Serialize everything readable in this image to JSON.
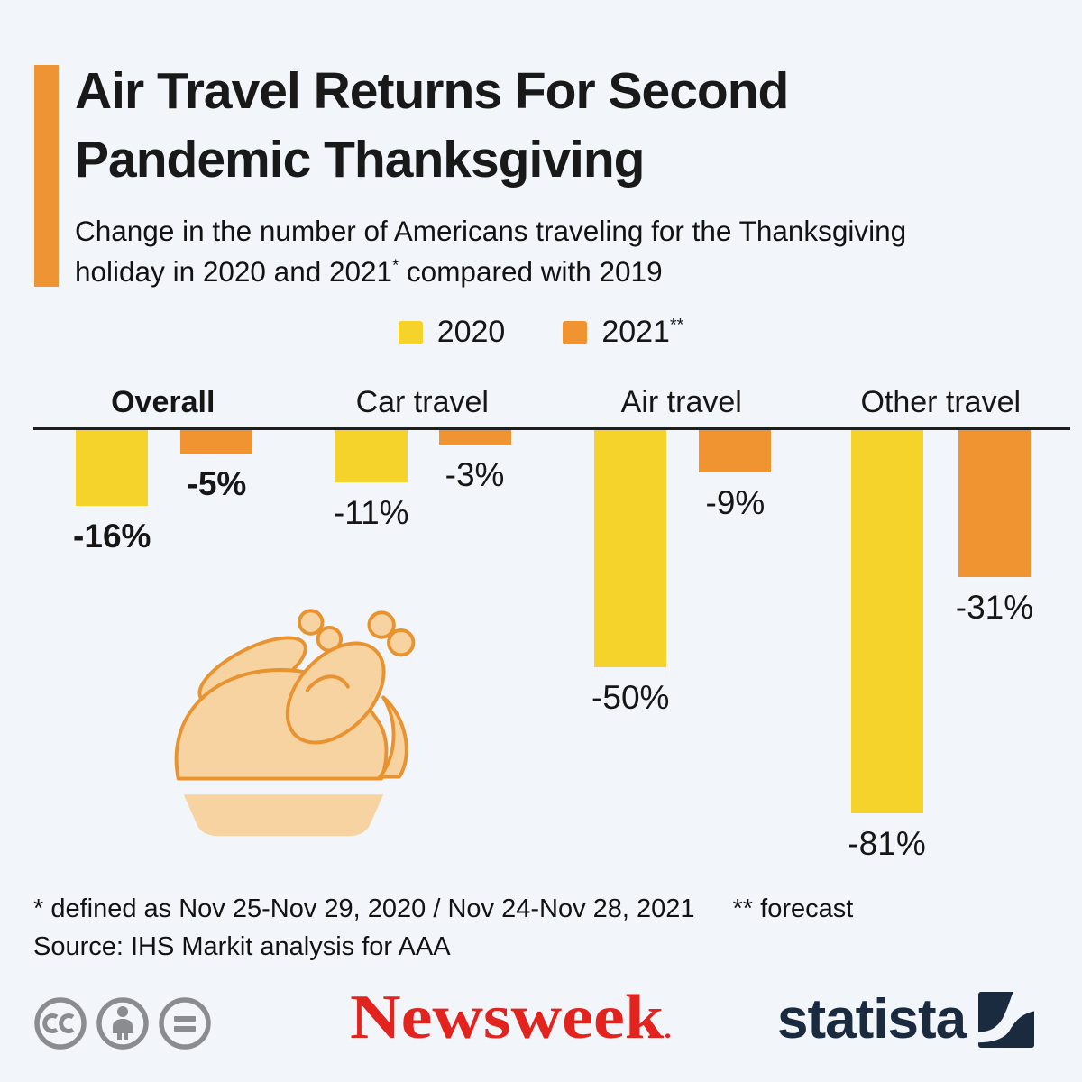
{
  "page": {
    "background": "#F2F6FA"
  },
  "header": {
    "accent_color": "#EF9434",
    "title": "Air Travel Returns For Second Pandemic Thanksgiving",
    "subtitle_main": "Change in the number of Americans traveling for the Thanksgiving holiday in 2020 and 2021",
    "subtitle_sup": "*",
    "subtitle_tail": " compared with 2019"
  },
  "legend": {
    "forecast_mark": "**"
  },
  "chart_data": {
    "type": "bar",
    "title": "Change in the number of Americans traveling for the Thanksgiving holiday in 2020 and 2021 compared with 2019",
    "categories": [
      "Overall",
      "Car travel",
      "Air travel",
      "Other travel"
    ],
    "series": [
      {
        "name": "2020",
        "color": "#F6D32B",
        "values": [
          -16,
          -11,
          -50,
          -81
        ],
        "value_labels": [
          "-16%",
          "-11%",
          "-50%",
          "-81%"
        ]
      },
      {
        "name": "2021",
        "color": "#EF9430",
        "values": [
          -5,
          -3,
          -9,
          -31
        ],
        "value_labels": [
          "-5%",
          "-3%",
          "-9%",
          "-31%"
        ]
      }
    ],
    "unit": "%",
    "ylim": [
      -85,
      0
    ],
    "baseline_value": 0,
    "grid": false,
    "legend_position": "top-center",
    "orientation": "vertical-bars-below-baseline"
  },
  "footnotes": {
    "definition": "* defined as Nov 25-Nov 29, 2020 / Nov 24-Nov 28, 2021",
    "forecast": "** forecast",
    "source": "Source: IHS Markit analysis for AAA"
  },
  "footer": {
    "license_icons": [
      "cc-icon",
      "attribution-person-icon",
      "equals-no-derivatives-icon"
    ],
    "license_color": "#8A8C8F",
    "newsweek_logo_text": "Newsweek",
    "newsweek_tm_dot": ".",
    "newsweek_color": "#E2231E",
    "statista_logo_text": "statista",
    "statista_color": "#1A2B40"
  }
}
